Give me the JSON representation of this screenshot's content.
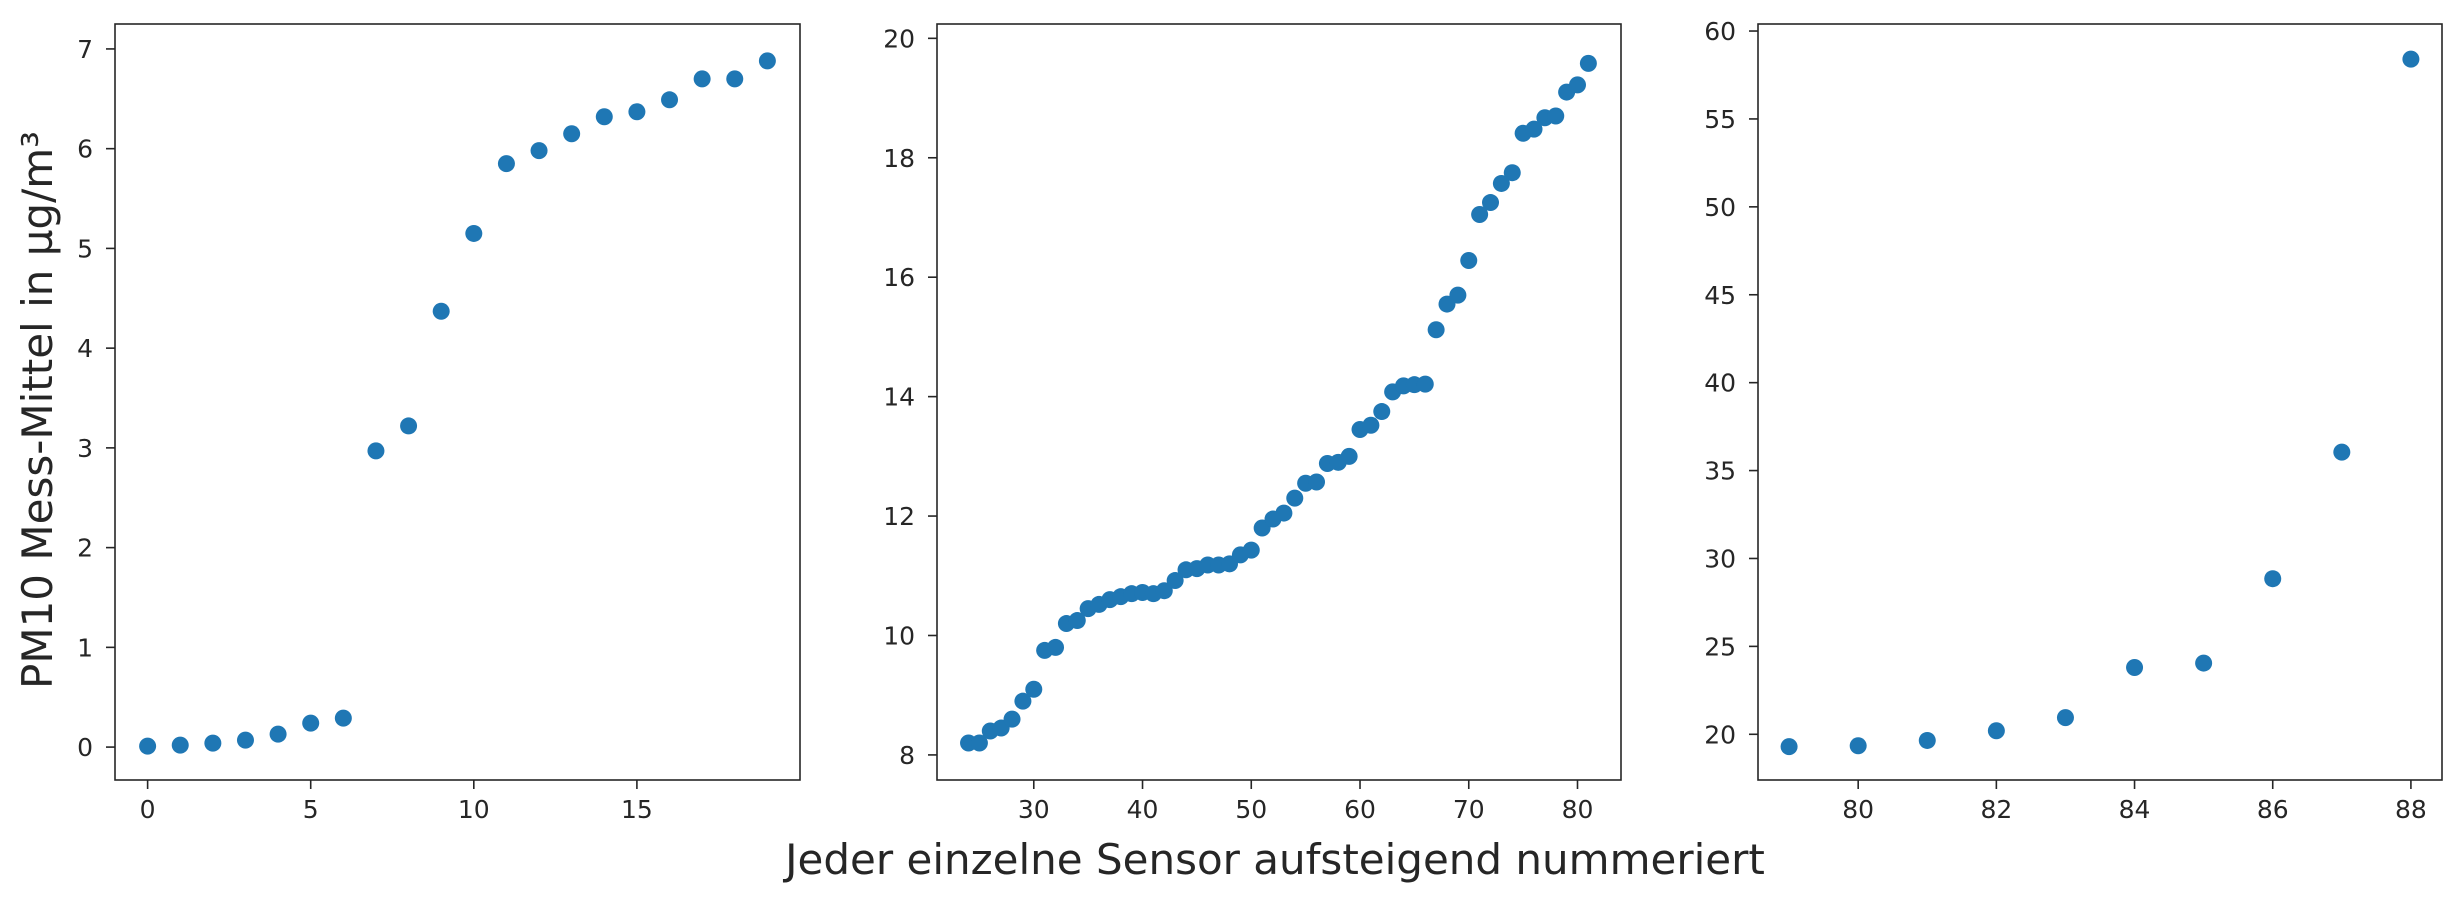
{
  "figure": {
    "ylabel": "PM10 Mess-Mittel in µg/m³",
    "xlabel": "Jeder einzelne Sensor aufsteigend nummeriert"
  },
  "chart_data": [
    {
      "type": "scatter",
      "color": "#1f77b4",
      "xlim": [
        -1,
        20
      ],
      "ylim": [
        -0.33,
        7.25
      ],
      "xticks": [
        "0",
        "5",
        "10",
        "15"
      ],
      "yticks": [
        "0",
        "1",
        "2",
        "3",
        "4",
        "5",
        "6",
        "7"
      ],
      "x": [
        0,
        1,
        2,
        3,
        4,
        5,
        6,
        7,
        8,
        9,
        10,
        11,
        12,
        13,
        14,
        15,
        16,
        17,
        18,
        19
      ],
      "y": [
        0.01,
        0.02,
        0.04,
        0.07,
        0.13,
        0.24,
        0.29,
        2.97,
        3.22,
        4.37,
        5.15,
        5.85,
        5.98,
        6.15,
        6.32,
        6.37,
        6.49,
        6.7,
        6.7,
        6.88
      ]
    },
    {
      "type": "scatter",
      "color": "#1f77b4",
      "xlim": [
        21.1,
        84.0
      ],
      "ylim": [
        7.58,
        20.24
      ],
      "xticks": [
        "30",
        "40",
        "50",
        "60",
        "70",
        "80"
      ],
      "yticks": [
        "8",
        "10",
        "12",
        "14",
        "16",
        "18",
        "20"
      ],
      "x": [
        24,
        25,
        26,
        27,
        28,
        29,
        30,
        31,
        32,
        33,
        34,
        35,
        36,
        37,
        38,
        39,
        40,
        41,
        42,
        43,
        44,
        45,
        46,
        47,
        48,
        49,
        50,
        51,
        52,
        53,
        54,
        55,
        56,
        57,
        58,
        59,
        60,
        61,
        62,
        63,
        64,
        65,
        66,
        67,
        68,
        69,
        70,
        71,
        72,
        73,
        74,
        75,
        76,
        77,
        78,
        79,
        80,
        81
      ],
      "y": [
        8.2,
        8.2,
        8.4,
        8.45,
        8.6,
        8.9,
        9.1,
        9.75,
        9.8,
        10.2,
        10.25,
        10.45,
        10.52,
        10.6,
        10.65,
        10.7,
        10.72,
        10.7,
        10.75,
        10.92,
        11.1,
        11.12,
        11.18,
        11.18,
        11.2,
        11.35,
        11.43,
        11.8,
        11.95,
        12.05,
        12.3,
        12.55,
        12.57,
        12.88,
        12.9,
        13.0,
        13.45,
        13.52,
        13.75,
        14.08,
        14.18,
        14.2,
        14.21,
        15.12,
        15.55,
        15.7,
        16.28,
        17.05,
        17.25,
        17.57,
        17.75,
        18.41,
        18.48,
        18.67,
        18.7,
        19.1,
        19.22,
        19.58
      ]
    },
    {
      "type": "scatter",
      "color": "#1f77b4",
      "xlim": [
        78.55,
        88.45
      ],
      "ylim": [
        17.4,
        60.4
      ],
      "xticks": [
        "80",
        "82",
        "84",
        "86",
        "88"
      ],
      "yticks": [
        "20",
        "25",
        "30",
        "35",
        "40",
        "45",
        "50",
        "55",
        "60"
      ],
      "x": [
        79,
        80,
        81,
        82,
        83,
        84,
        85,
        86,
        87,
        88
      ],
      "y": [
        19.3,
        19.35,
        19.65,
        20.2,
        20.95,
        23.8,
        24.05,
        28.85,
        36.05,
        58.4
      ]
    }
  ]
}
